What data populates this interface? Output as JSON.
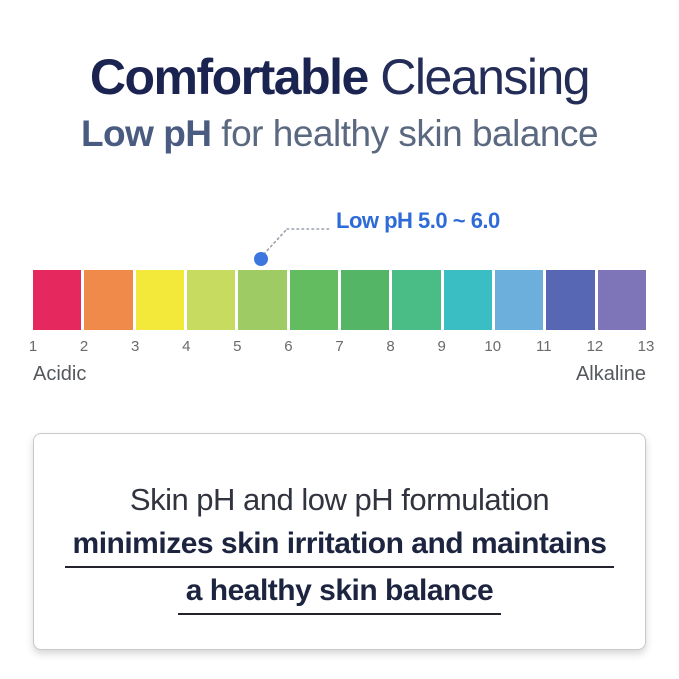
{
  "header": {
    "title_strong": "Comfortable",
    "title_light": " Cleansing",
    "subtitle_strong": "Low pH",
    "subtitle_light": " for healthy skin balance"
  },
  "ph_scale": {
    "callout_label": "Low pH 5.0 ~ 6.0",
    "callout_text_color": "#2E6BD8",
    "callout_dot_color": "#3D76DF",
    "callout_points_to_ph": "5.5",
    "segments": [
      {
        "from": "1",
        "to": "2",
        "color": "#E5295E"
      },
      {
        "from": "2",
        "to": "3",
        "color": "#EF8A4A"
      },
      {
        "from": "3",
        "to": "4",
        "color": "#F3E93B"
      },
      {
        "from": "4",
        "to": "5",
        "color": "#C8DB61"
      },
      {
        "from": "5",
        "to": "6",
        "color": "#9FCB64"
      },
      {
        "from": "6",
        "to": "7",
        "color": "#64BC60"
      },
      {
        "from": "7",
        "to": "8",
        "color": "#55B566"
      },
      {
        "from": "8",
        "to": "9",
        "color": "#4ABD86"
      },
      {
        "from": "9",
        "to": "10",
        "color": "#3BBEC3"
      },
      {
        "from": "10",
        "to": "11",
        "color": "#6CAFDD"
      },
      {
        "from": "11",
        "to": "12",
        "color": "#5767B4"
      },
      {
        "from": "12",
        "to": "13",
        "color": "#7E74B8"
      }
    ],
    "tick_labels": [
      "1",
      "2",
      "3",
      "4",
      "5",
      "6",
      "7",
      "8",
      "9",
      "10",
      "11",
      "12",
      "13"
    ],
    "left_label": "Acidic",
    "right_label": "Alkaline"
  },
  "info_box": {
    "line1": "Skin pH and low pH formulation",
    "line2": "minimizes skin irritation and maintains",
    "line3": "a healthy skin balance"
  }
}
